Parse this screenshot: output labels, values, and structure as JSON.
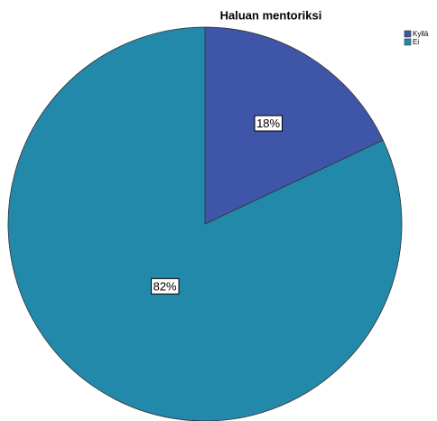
{
  "chart_data": {
    "type": "pie",
    "title": "Haluan mentoriksi",
    "categories": [
      "Kyllä",
      "Ei"
    ],
    "values": [
      18,
      82
    ],
    "value_labels": [
      "18%",
      "82%"
    ],
    "colors": [
      "#3f56a8",
      "#2389ab"
    ],
    "legend": "top-right"
  }
}
